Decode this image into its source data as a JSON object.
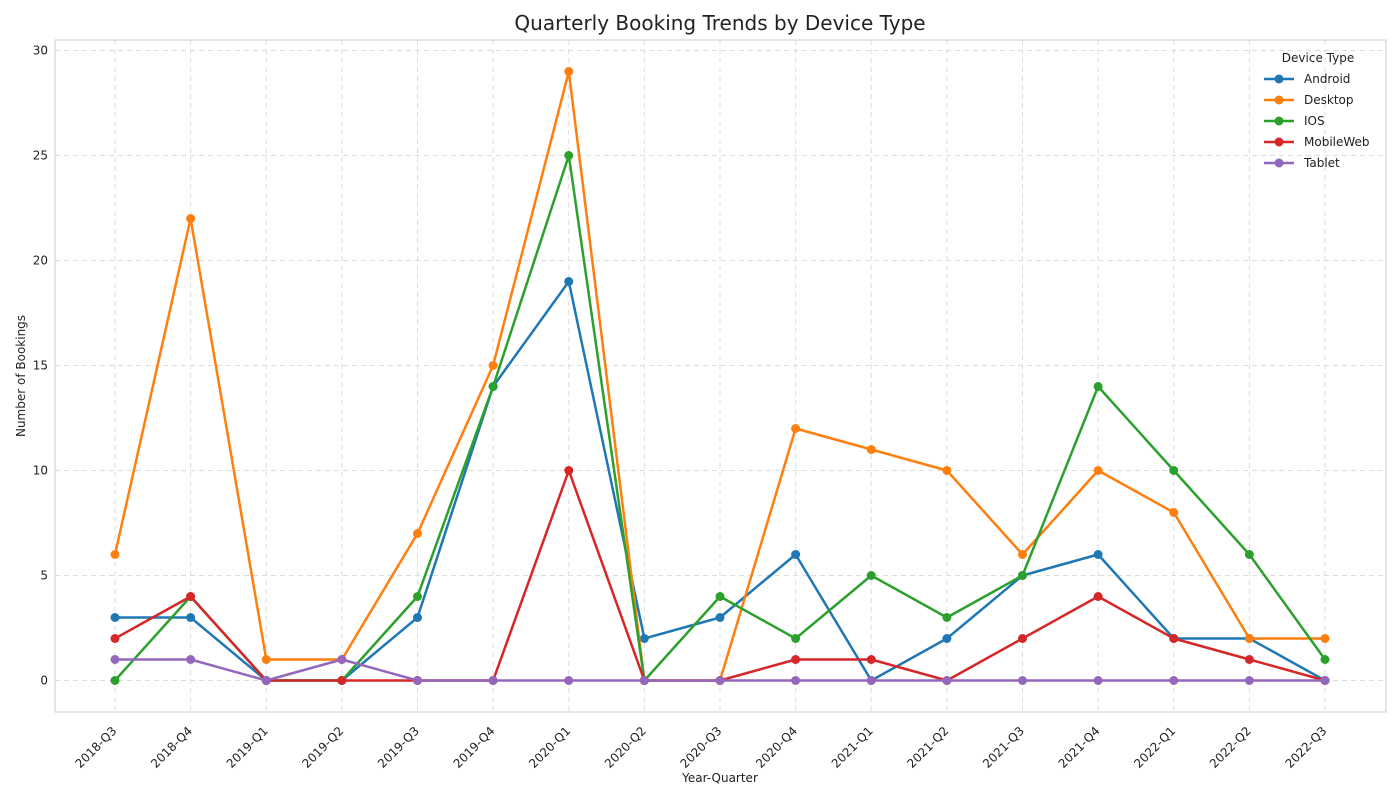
{
  "chart_data": {
    "type": "line",
    "title": "Quarterly Booking Trends by Device Type",
    "xlabel": "Year-Quarter",
    "ylabel": "Number of Bookings",
    "categories": [
      "2018-Q3",
      "2018-Q4",
      "2019-Q1",
      "2019-Q2",
      "2019-Q3",
      "2019-Q4",
      "2020-Q1",
      "2020-Q2",
      "2020-Q3",
      "2020-Q4",
      "2021-Q1",
      "2021-Q2",
      "2021-Q3",
      "2021-Q4",
      "2022-Q1",
      "2022-Q2",
      "2022-Q3"
    ],
    "ylim": [
      -1.5,
      30.5
    ],
    "yticks": [
      0,
      5,
      10,
      15,
      20,
      25,
      30
    ],
    "grid": true,
    "legend": {
      "title": "Device Type",
      "placement": "top-right"
    },
    "series": [
      {
        "name": "Android",
        "color": "#1f77b4",
        "values": [
          3,
          3,
          0,
          0,
          3,
          14,
          19,
          2,
          3,
          6,
          0,
          2,
          5,
          6,
          2,
          2,
          0
        ]
      },
      {
        "name": "Desktop",
        "color": "#ff7f0e",
        "values": [
          6,
          22,
          1,
          1,
          7,
          15,
          29,
          0,
          0,
          12,
          11,
          10,
          6,
          10,
          8,
          2,
          2
        ]
      },
      {
        "name": "IOS",
        "color": "#2ca02c",
        "values": [
          0,
          4,
          0,
          0,
          4,
          14,
          25,
          0,
          4,
          2,
          5,
          3,
          5,
          14,
          10,
          6,
          1
        ]
      },
      {
        "name": "MobileWeb",
        "color": "#d62728",
        "values": [
          2,
          4,
          0,
          0,
          0,
          0,
          10,
          0,
          0,
          1,
          1,
          0,
          2,
          4,
          2,
          1,
          0
        ]
      },
      {
        "name": "Tablet",
        "color": "#9467bd",
        "values": [
          1,
          1,
          0,
          1,
          0,
          0,
          0,
          0,
          0,
          0,
          0,
          0,
          0,
          0,
          0,
          0,
          0
        ]
      }
    ]
  }
}
